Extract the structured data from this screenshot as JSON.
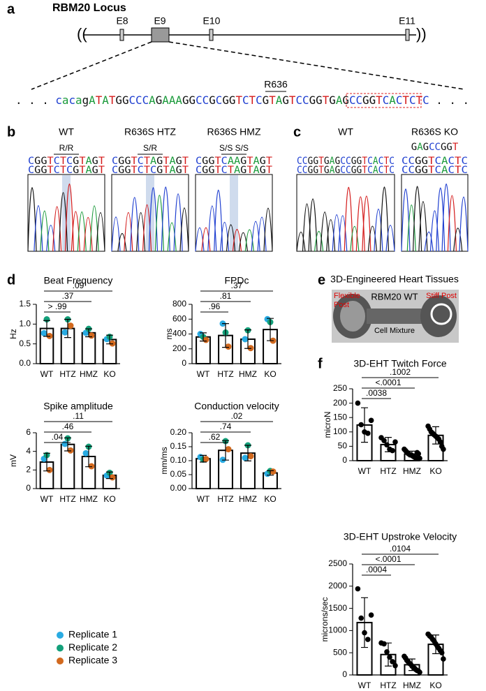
{
  "panel_a": {
    "letter": "a",
    "title": "RBM20 Locus",
    "exons": [
      "E8",
      "E9",
      "E10",
      "E11"
    ],
    "codon_label": "R636",
    "sequence": ". . . cacagATATGGCCCAGAAAGGCCGCGGTCTCGTAGTCCGGTGAGCCGGTCACTCTC . . ."
  },
  "panel_b": {
    "letter": "b",
    "samples": [
      {
        "name": "WT",
        "genotype": "R/R",
        "reads": [
          "CGGTCTCGTAGT",
          "CGGTCTCGTAGT"
        ]
      },
      {
        "name": "R636S HTZ",
        "genotype": "S/R",
        "reads": [
          "CGGTCTAGTAGT",
          "CGGTCTCGTAGT"
        ]
      },
      {
        "name": "R636S HMZ",
        "genotype": "S/S S/S",
        "reads": [
          "CGGTCAAGTAGT",
          "CGGTCTAGTAGT"
        ]
      }
    ]
  },
  "panel_c": {
    "letter": "c",
    "samples": [
      {
        "name": "WT",
        "reads": [
          "CCGGTGAGCCGGTCACTC",
          "CCGGTGAGCCGGTCACTC"
        ]
      },
      {
        "name": "R636S KO",
        "deleted": "GAGCCGGT",
        "reads": [
          "CCGGTCACTC",
          "CCGGTCACTC"
        ]
      }
    ]
  },
  "panel_d": {
    "letter": "d"
  },
  "panel_e": {
    "letter": "e",
    "title": "3D-Engineered Heart Tissues",
    "flexible_post": [
      "Flexible",
      "Post"
    ],
    "sample": "RBM20 WT",
    "cell_mixture": "Cell Mixture",
    "stiff_post": "Stiff Post"
  },
  "panel_f": {
    "letter": "f"
  },
  "replicate_legend": [
    {
      "name": "Replicate 1",
      "color": "#29abe2"
    },
    {
      "name": "Replicate 2",
      "color": "#13a07a"
    },
    {
      "name": "Replicate 3",
      "color": "#d2691e"
    }
  ],
  "chart_data": [
    {
      "type": "bar",
      "title": "Beat Frequency",
      "ylabel": "Hz",
      "categories": [
        "WT",
        "HTZ",
        "HMZ",
        "KO"
      ],
      "values": [
        0.89,
        0.89,
        0.78,
        0.61
      ],
      "errors": [
        0.2,
        0.23,
        0.1,
        0.11
      ],
      "replicates": [
        [
          0.77,
          0.79,
          0.78,
          0.62
        ],
        [
          1.12,
          1.12,
          0.88,
          0.68
        ],
        [
          0.7,
          0.96,
          0.71,
          0.51
        ]
      ],
      "ylim": [
        0,
        1.5
      ],
      "yticks": [
        {
          "value": 0,
          "label": "0.0"
        },
        0.5,
        {
          "value": 1,
          "label": "1.0"
        },
        1.5
      ],
      "comparisons": [
        "> .99",
        ".37",
        ".09"
      ]
    },
    {
      "type": "bar",
      "title": "FPDc",
      "ylabel": "ms",
      "categories": [
        "WT",
        "HTZ",
        "HMZ",
        "KO"
      ],
      "values": [
        360,
        380,
        330,
        460
      ],
      "errors": [
        55,
        160,
        125,
        150
      ],
      "replicates": [
        [
          400,
          540,
          330,
          600
        ],
        [
          360,
          420,
          450,
          560
        ],
        [
          320,
          230,
          210,
          310
        ]
      ],
      "ylim": [
        0,
        800
      ],
      "yticks": [
        0,
        200,
        400,
        600,
        800
      ],
      "comparisons": [
        ".96",
        ".81",
        ".37"
      ]
    },
    {
      "type": "bar",
      "title": "Spike amplitude",
      "ylabel": "mV",
      "categories": [
        "WT",
        "HTZ",
        "HMZ",
        "KO"
      ],
      "values": [
        2.85,
        4.75,
        3.45,
        1.43
      ],
      "errors": [
        0.95,
        0.7,
        1.1,
        0.35
      ],
      "replicates": [
        [
          3.2,
          4.8,
          3.8,
          1.4
        ],
        [
          3.6,
          5.4,
          4.5,
          1.7
        ],
        [
          2.0,
          4.1,
          2.4,
          1.2
        ]
      ],
      "ylim": [
        0,
        6
      ],
      "yticks": [
        0,
        2,
        4,
        6
      ],
      "comparisons": [
        ".04",
        ".46",
        ".11"
      ]
    },
    {
      "type": "bar",
      "title": "Conduction velocity",
      "ylabel": "mm/ms",
      "categories": [
        "WT",
        "HTZ",
        "HMZ",
        "KO"
      ],
      "values": [
        0.107,
        0.137,
        0.127,
        0.056
      ],
      "errors": [
        0.012,
        0.035,
        0.028,
        0.008
      ],
      "replicates": [
        [
          0.113,
          0.103,
          0.11,
          0.053
        ],
        [
          0.104,
          0.17,
          0.155,
          0.063
        ],
        [
          0.106,
          0.141,
          0.116,
          0.061
        ]
      ],
      "ylim": [
        0,
        0.2
      ],
      "yticks": [
        {
          "value": 0,
          "label": "0.00"
        },
        0.05,
        {
          "value": 0.1,
          "label": "0.10"
        },
        0.15,
        {
          "value": 0.2,
          "label": "0.20"
        }
      ],
      "comparisons": [
        ".62",
        ".74",
        ".02"
      ]
    },
    {
      "type": "bar",
      "title": "3D-EHT Twitch Force",
      "ylabel": "microN",
      "categories": [
        "WT",
        "HTZ",
        "HMZ",
        "KO"
      ],
      "values": [
        124,
        56,
        23,
        88
      ],
      "errors": [
        60,
        25,
        10,
        30
      ],
      "points": [
        [
          200,
          125,
          100,
          95,
          140
        ],
        [
          80,
          70,
          55,
          40,
          35,
          65
        ],
        [
          40,
          35,
          30,
          25,
          22,
          20,
          18,
          15,
          12,
          10,
          28,
          24,
          8
        ],
        [
          120,
          110,
          100,
          95,
          90,
          85,
          80,
          75,
          65,
          50,
          40
        ]
      ],
      "ylim": [
        0,
        250
      ],
      "yticks": [
        0,
        50,
        100,
        150,
        200,
        250
      ],
      "comparisons": [
        ".0038",
        "<.0001",
        ".1002"
      ]
    },
    {
      "type": "bar",
      "title": "3D-EHT Upstroke Velocity",
      "ylabel": "microns/sec",
      "categories": [
        "WT",
        "HTZ",
        "HMZ",
        "KO"
      ],
      "values": [
        1180,
        460,
        230,
        690
      ],
      "errors": [
        560,
        260,
        130,
        210
      ],
      "points": [
        [
          1940,
          1280,
          950,
          800,
          1350
        ],
        [
          720,
          700,
          520,
          400,
          300,
          210
        ],
        [
          420,
          380,
          330,
          300,
          260,
          240,
          200,
          180,
          150,
          120,
          100,
          90,
          60
        ],
        [
          920,
          880,
          850,
          800,
          760,
          700,
          650,
          600,
          550,
          500,
          360
        ]
      ],
      "ylim": [
        0,
        2500
      ],
      "yticks": [
        0,
        500,
        1000,
        1500,
        2000,
        2500
      ],
      "comparisons": [
        ".0004",
        "<.0001",
        ".0104"
      ]
    }
  ]
}
